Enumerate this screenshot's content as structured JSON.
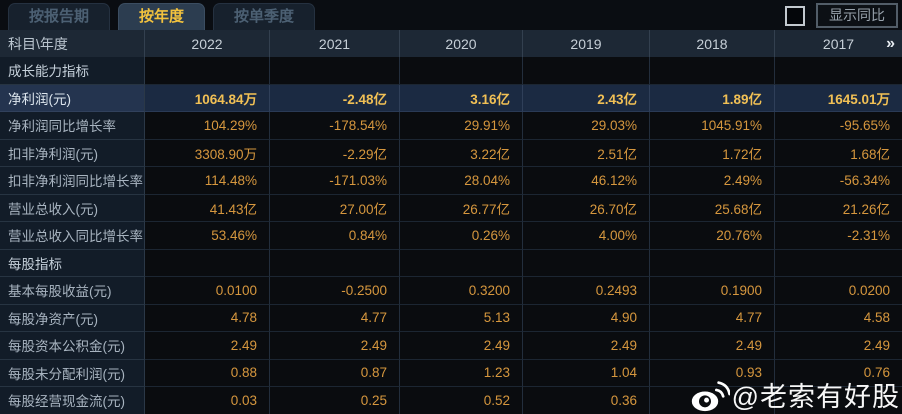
{
  "tabs": [
    {
      "label": "按报告期",
      "active": false
    },
    {
      "label": "按年度",
      "active": true
    },
    {
      "label": "按单季度",
      "active": false
    }
  ],
  "controls": {
    "compare_label": "显示同比",
    "checkbox_checked": false
  },
  "table": {
    "corner_label": "科目\\年度",
    "years": [
      "2022",
      "2021",
      "2020",
      "2019",
      "2018",
      "2017"
    ],
    "more_icon": "»",
    "rows": [
      {
        "type": "section",
        "label": "成长能力指标",
        "values": [
          "",
          "",
          "",
          "",
          "",
          ""
        ]
      },
      {
        "type": "data",
        "highlight": true,
        "label": "净利润(元)",
        "values": [
          "1064.84万",
          "-2.48亿",
          "3.16亿",
          "2.43亿",
          "1.89亿",
          "1645.01万"
        ]
      },
      {
        "type": "data",
        "label": "净利润同比增长率",
        "values": [
          "104.29%",
          "-178.54%",
          "29.91%",
          "29.03%",
          "1045.91%",
          "-95.65%"
        ]
      },
      {
        "type": "data",
        "label": "扣非净利润(元)",
        "values": [
          "3308.90万",
          "-2.29亿",
          "3.22亿",
          "2.51亿",
          "1.72亿",
          "1.68亿"
        ]
      },
      {
        "type": "data",
        "label": "扣非净利润同比增长率",
        "values": [
          "114.48%",
          "-171.03%",
          "28.04%",
          "46.12%",
          "2.49%",
          "-56.34%"
        ]
      },
      {
        "type": "data",
        "label": "营业总收入(元)",
        "values": [
          "41.43亿",
          "27.00亿",
          "26.77亿",
          "26.70亿",
          "25.68亿",
          "21.26亿"
        ]
      },
      {
        "type": "data",
        "label": "营业总收入同比增长率",
        "values": [
          "53.46%",
          "0.84%",
          "0.26%",
          "4.00%",
          "20.76%",
          "-2.31%"
        ]
      },
      {
        "type": "section",
        "label": "每股指标",
        "values": [
          "",
          "",
          "",
          "",
          "",
          ""
        ]
      },
      {
        "type": "data",
        "label": "基本每股收益(元)",
        "values": [
          "0.0100",
          "-0.2500",
          "0.3200",
          "0.2493",
          "0.1900",
          "0.0200"
        ]
      },
      {
        "type": "data",
        "label": "每股净资产(元)",
        "values": [
          "4.78",
          "4.77",
          "5.13",
          "4.90",
          "4.77",
          "4.58"
        ]
      },
      {
        "type": "data",
        "label": "每股资本公积金(元)",
        "values": [
          "2.49",
          "2.49",
          "2.49",
          "2.49",
          "2.49",
          "2.49"
        ]
      },
      {
        "type": "data",
        "label": "每股未分配利润(元)",
        "values": [
          "0.88",
          "0.87",
          "1.23",
          "1.04",
          "0.93",
          "0.76"
        ]
      },
      {
        "type": "data",
        "label": "每股经营现金流(元)",
        "values": [
          "0.03",
          "0.25",
          "0.52",
          "0.36",
          "",
          ""
        ]
      }
    ]
  },
  "watermark": {
    "icon": "weibo-icon",
    "text": "@老索有好股"
  },
  "colors": {
    "background": "#0a0d12",
    "header_bg": "#1d2835",
    "label_col_bg": "#121c28",
    "highlight_row_bg": "#1b2a42",
    "value_gold": "#d6973e",
    "highlight_gold": "#f1c055",
    "tab_active_text": "#f2c23e",
    "watermark_white": "#ffffff"
  }
}
